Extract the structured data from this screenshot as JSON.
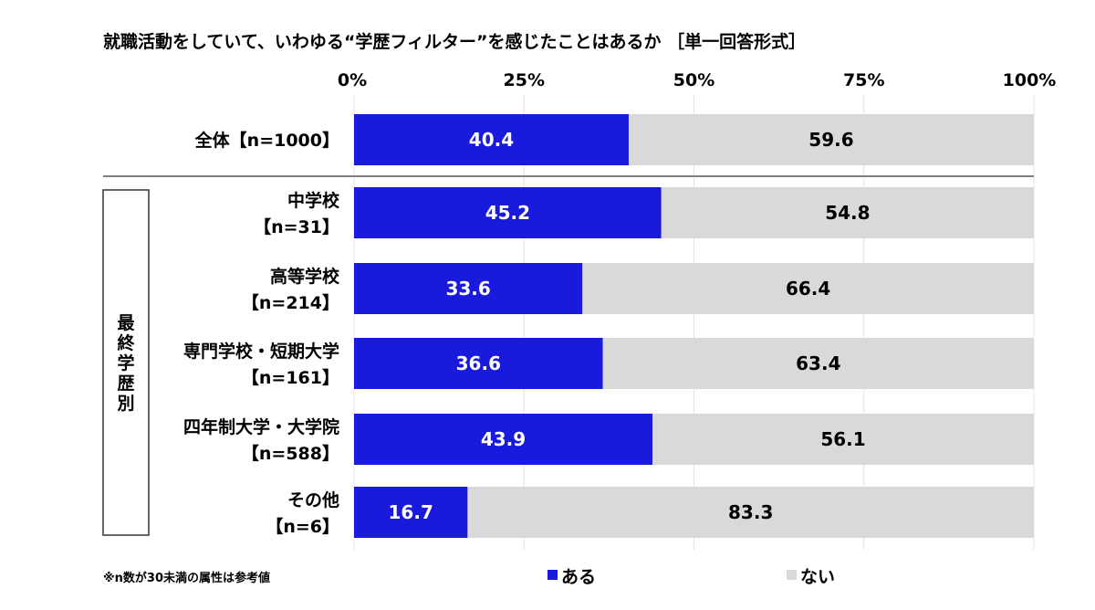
{
  "chart_data": {
    "type": "bar",
    "orientation": "horizontal",
    "stacked": true,
    "title": "就職活動をしていて、いわゆる“学歴フィルター”を感じたことはあるか ［単一回答形式］",
    "xlim": [
      0,
      100
    ],
    "x_ticks": [
      "0%",
      "25%",
      "50%",
      "75%",
      "100%"
    ],
    "grid": true,
    "legend_position": "bottom",
    "categories": [
      {
        "label": [
          "全体【n=1000】"
        ],
        "group": ""
      },
      {
        "label": [
          "中学校",
          "【n=31】"
        ],
        "group": "最終学歴別"
      },
      {
        "label": [
          "高等学校",
          "【n=214】"
        ],
        "group": "最終学歴別"
      },
      {
        "label": [
          "専門学校・短期大学",
          "【n=161】"
        ],
        "group": "最終学歴別"
      },
      {
        "label": [
          "四年制大学・大学院",
          "【n=588】"
        ],
        "group": "最終学歴別"
      },
      {
        "label": [
          "その他",
          "【n=6】"
        ],
        "group": "最終学歴別"
      }
    ],
    "group_label": "最終学歴別",
    "series": [
      {
        "name": "ある",
        "color": "#1a1adc",
        "values": [
          40.4,
          45.2,
          33.6,
          36.6,
          43.9,
          16.7
        ],
        "labels": [
          "40.4",
          "45.2",
          "33.6",
          "36.6",
          "43.9",
          "16.7"
        ]
      },
      {
        "name": "ない",
        "color": "#d9d9d9",
        "values": [
          59.6,
          54.8,
          66.4,
          63.4,
          56.1,
          83.3
        ],
        "labels": [
          "59.6",
          "54.8",
          "66.4",
          "63.4",
          "56.1",
          "83.3"
        ]
      }
    ],
    "note": "※n数が30未満の属性は参考値"
  }
}
